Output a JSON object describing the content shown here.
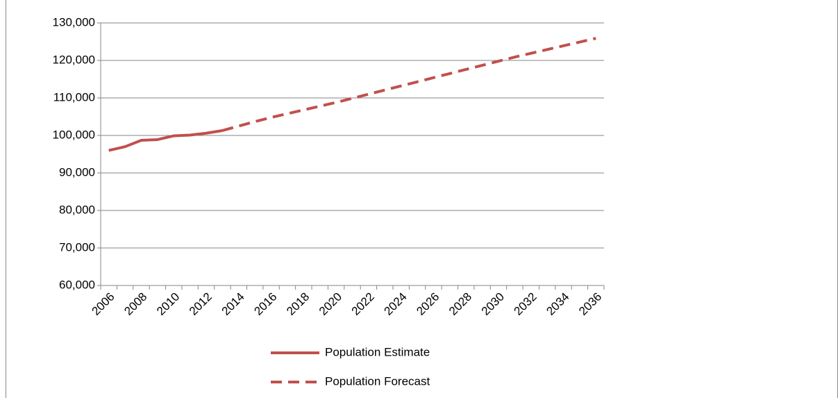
{
  "chart_data": {
    "type": "line",
    "categories": [
      2006,
      null,
      2008,
      null,
      2010,
      null,
      2012,
      null,
      2014,
      null,
      2016,
      null,
      2018,
      null,
      2020,
      null,
      2022,
      null,
      2024,
      null,
      2026,
      null,
      2028,
      null,
      2030,
      null,
      2032,
      null,
      2034,
      null,
      2036
    ],
    "series": [
      {
        "name": "Population Estimate",
        "color": "#c0504d",
        "dash": false,
        "values": [
          96000,
          97000,
          98700,
          98900,
          99900,
          100100,
          100600,
          101300,
          null,
          null,
          null,
          null,
          null,
          null,
          null,
          null,
          null,
          null,
          null,
          null,
          null,
          null,
          null,
          null,
          null,
          null,
          null,
          null,
          null,
          null,
          null
        ]
      },
      {
        "name": "Population Forecast",
        "color": "#c0504d",
        "dash": true,
        "values": [
          null,
          null,
          null,
          null,
          null,
          null,
          null,
          101300,
          102500,
          103700,
          104800,
          105800,
          106800,
          107800,
          108800,
          109900,
          111000,
          112100,
          113200,
          114300,
          115400,
          116500,
          117600,
          118700,
          119800,
          120900,
          121900,
          122900,
          123900,
          124900,
          125900
        ]
      }
    ],
    "ylim": [
      60000,
      130000
    ],
    "yticks": [
      {
        "value": 60000,
        "label": "60,000"
      },
      {
        "value": 70000,
        "label": "70,000"
      },
      {
        "value": 80000,
        "label": "80,000"
      },
      {
        "value": 90000,
        "label": "90,000"
      },
      {
        "value": 100000,
        "label": "100,000"
      },
      {
        "value": 110000,
        "label": "110,000"
      },
      {
        "value": 120000,
        "label": "120,000"
      },
      {
        "value": 130000,
        "label": "130,000"
      }
    ],
    "grid": true,
    "legend": "bottom"
  }
}
